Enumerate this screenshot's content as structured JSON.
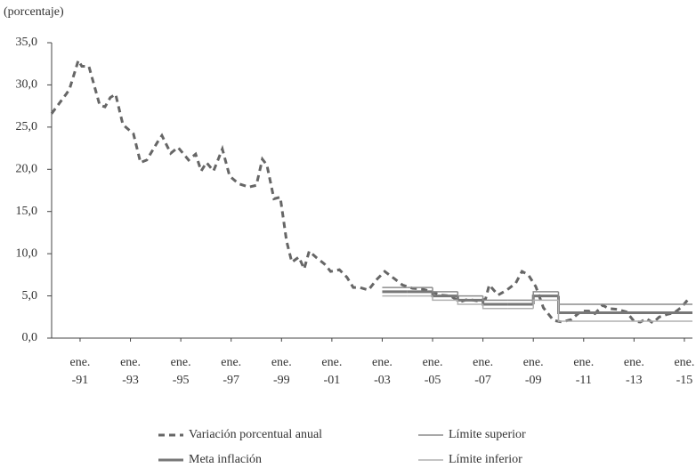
{
  "chart_data": {
    "type": "line",
    "y_label": "(porcentaje)",
    "xlim": [
      1989.87,
      2015.32
    ],
    "xticks": [
      {
        "value": 1991,
        "label": "ene.\n-91"
      },
      {
        "value": 1993,
        "label": "ene.\n-93"
      },
      {
        "value": 1995,
        "label": "ene.\n-95"
      },
      {
        "value": 1997,
        "label": "ene.\n-97"
      },
      {
        "value": 1999,
        "label": "ene.\n-99"
      },
      {
        "value": 2001,
        "label": "ene.\n-01"
      },
      {
        "value": 2003,
        "label": "ene.\n-03"
      },
      {
        "value": 2005,
        "label": "ene.\n-05"
      },
      {
        "value": 2007,
        "label": "ene.\n-07"
      },
      {
        "value": 2009,
        "label": "ene.\n-09"
      },
      {
        "value": 2011,
        "label": "ene.\n-11"
      },
      {
        "value": 2013,
        "label": "ene.\n-13"
      },
      {
        "value": 2015,
        "label": "ene.\n-15"
      }
    ],
    "ylim": [
      0,
      35
    ],
    "yticks": [
      {
        "value": 0,
        "label": "0,0"
      },
      {
        "value": 5,
        "label": "5,0"
      },
      {
        "value": 10,
        "label": "10,0"
      },
      {
        "value": 15,
        "label": "15,0"
      },
      {
        "value": 20,
        "label": "20,0"
      },
      {
        "value": 25,
        "label": "25,0"
      },
      {
        "value": 30,
        "label": "30,0"
      },
      {
        "value": 35,
        "label": "35,0"
      }
    ],
    "grid": false,
    "legend": "bottom",
    "series": [
      {
        "name": "Variación porcentual anual",
        "color": "#666666",
        "style": "dashed",
        "x": [
          1989.87,
          1990.47,
          1990.58,
          1990.93,
          1991.07,
          1991.35,
          1991.78,
          1991.99,
          1992.2,
          1992.41,
          1992.7,
          1993.12,
          1993.4,
          1993.65,
          1994.11,
          1994.25,
          1994.6,
          1994.89,
          1995.31,
          1995.59,
          1995.81,
          1996.02,
          1996.3,
          1996.65,
          1996.94,
          1997.29,
          1997.71,
          1998.0,
          1998.24,
          1998.42,
          1998.7,
          1998.95,
          1999.2,
          1999.41,
          1999.69,
          1999.9,
          2000.1,
          2000.4,
          2000.7,
          2000.95,
          2001.3,
          2001.6,
          2001.85,
          2002.1,
          2002.45,
          2002.8,
          2003.1,
          2003.5,
          2003.8,
          2004.2,
          2004.6,
          2004.95,
          2005.3,
          2005.7,
          2006.1,
          2006.4,
          2006.8,
          2007.1,
          2007.25,
          2007.6,
          2007.95,
          2008.3,
          2008.55,
          2008.8,
          2009.1,
          2009.4,
          2009.8,
          2010.15,
          2010.5,
          2010.9,
          2011.2,
          2011.45,
          2011.75,
          2012.0,
          2012.35,
          2012.7,
          2013.0,
          2013.25,
          2013.5,
          2013.75,
          2014.0,
          2014.3,
          2014.6,
          2014.9,
          2015.15,
          2015.25
        ],
        "values": [
          26.6,
          29.0,
          29.5,
          32.9,
          32.2,
          32.2,
          27.6,
          27.4,
          28.5,
          28.9,
          25.3,
          24.2,
          20.8,
          21.1,
          23.4,
          24.0,
          21.9,
          22.6,
          21.1,
          21.8,
          19.8,
          20.8,
          19.8,
          22.4,
          19.2,
          18.3,
          17.9,
          18.1,
          21.2,
          20.5,
          16.5,
          16.7,
          11.5,
          9.0,
          9.6,
          8.2,
          10.3,
          9.5,
          8.8,
          7.9,
          8.1,
          7.2,
          6.0,
          6.0,
          5.7,
          7.0,
          7.9,
          7.0,
          6.3,
          5.9,
          5.8,
          5.5,
          5.1,
          5.0,
          4.3,
          4.6,
          4.4,
          4.6,
          6.3,
          5.1,
          5.7,
          6.5,
          7.9,
          7.5,
          6.1,
          3.6,
          2.1,
          1.9,
          2.2,
          3.2,
          3.2,
          2.9,
          3.9,
          3.5,
          3.4,
          3.1,
          2.0,
          1.9,
          2.3,
          1.8,
          2.5,
          2.8,
          3.0,
          3.7,
          4.6,
          4.4
        ]
      },
      {
        "name": "Meta inflación",
        "color": "#777777",
        "style": "step-thick",
        "x": [
          2003,
          2004,
          2005,
          2006,
          2007,
          2008,
          2009,
          2010
        ],
        "values": [
          5.5,
          5.5,
          5.0,
          4.5,
          4.0,
          4.0,
          5.0,
          3.0
        ]
      },
      {
        "name": "Límite superior",
        "color": "#8c8c8c",
        "style": "step",
        "x": [
          2003,
          2004,
          2005,
          2006,
          2007,
          2008,
          2009,
          2010
        ],
        "values": [
          6.0,
          6.0,
          5.5,
          5.0,
          4.5,
          4.5,
          5.5,
          4.0
        ]
      },
      {
        "name": "Límite inferior",
        "color": "#b0b0b0",
        "style": "step",
        "x": [
          2003,
          2004,
          2005,
          2006,
          2007,
          2008,
          2009,
          2010
        ],
        "values": [
          5.0,
          5.0,
          4.5,
          4.0,
          3.5,
          3.5,
          4.5,
          2.0
        ]
      }
    ]
  }
}
